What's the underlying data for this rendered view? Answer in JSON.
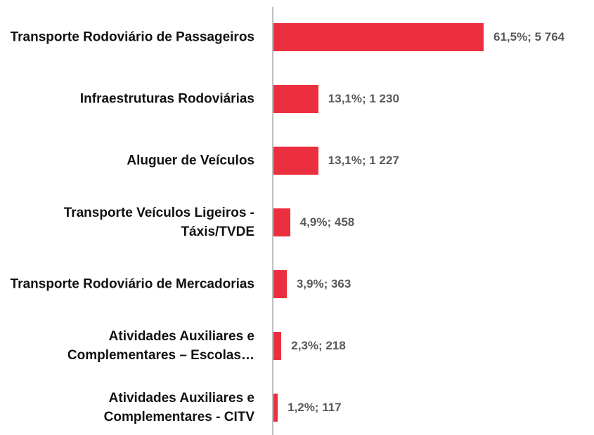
{
  "chart_data": {
    "type": "bar",
    "orientation": "horizontal",
    "color": "#ec2f3e",
    "categories": [
      "Transporte Rodoviário de Passageiros",
      "Infraestruturas Rodoviárias",
      "Aluguer de Veículos",
      "Transporte Veículos Ligeiros - Táxis/TVDE",
      "Transporte Rodoviário de Mercadorias",
      "Atividades Auxiliares e Complementares – Escolas…",
      "Atividades Auxiliares e Complementares - CITV"
    ],
    "values": [
      5764,
      1230,
      1227,
      458,
      363,
      218,
      117
    ],
    "value_labels": [
      "61,5%; 5 764",
      "13,1%; 1 230",
      "13,1%; 1 227",
      "4,9%; 458",
      "3,9%; 363",
      "2,3%; 218",
      "1,2%; 117"
    ]
  }
}
